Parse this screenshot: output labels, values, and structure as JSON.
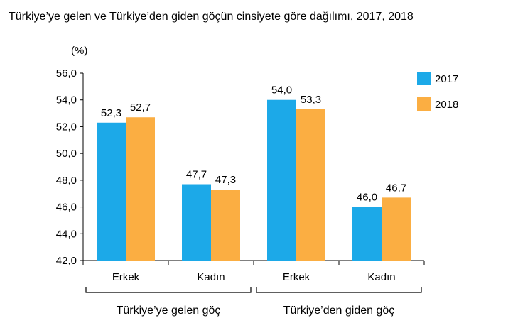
{
  "chart_data": {
    "type": "bar",
    "title": "Türkiye’ye gelen ve Türkiye’den giden göçün cinsiyete göre dağılımı, 2017, 2018",
    "ylabel": "(%)",
    "ylim": [
      42,
      56
    ],
    "yticks": [
      "42,0",
      "44,0",
      "46,0",
      "48,0",
      "50,0",
      "52,0",
      "54,0",
      "56,0"
    ],
    "grid": false,
    "legend_position": "top-right",
    "groups": [
      "Türkiye’ye gelen göç",
      "Türkiye’den giden göç"
    ],
    "categories": [
      "Erkek",
      "Kadın",
      "Erkek",
      "Kadın"
    ],
    "series": [
      {
        "name": "2017",
        "color": "#1CA9E8",
        "values": [
          52.3,
          47.7,
          54.0,
          46.0
        ],
        "labels": [
          "52,3",
          "47,7",
          "54,0",
          "46,0"
        ]
      },
      {
        "name": "2018",
        "color": "#FBAE42",
        "values": [
          52.7,
          47.3,
          53.3,
          46.7
        ],
        "labels": [
          "52,7",
          "47,3",
          "53,3",
          "46,7"
        ]
      }
    ]
  }
}
